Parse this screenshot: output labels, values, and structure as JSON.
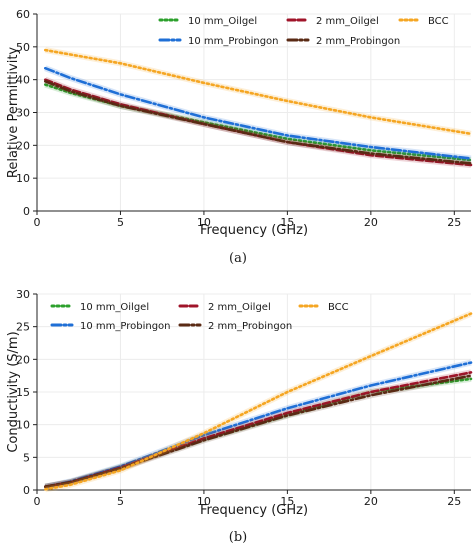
{
  "chart_data": [
    {
      "type": "line",
      "panel_label": "(a)",
      "xlabel": "Frequency (GHz)",
      "ylabel": "Relative Permittivity",
      "xlim": [
        0,
        26
      ],
      "ylim": [
        0,
        60
      ],
      "xticks": [
        0,
        5,
        10,
        15,
        20,
        25
      ],
      "yticks": [
        0,
        10,
        20,
        30,
        40,
        50,
        60
      ],
      "grid": true,
      "legend": "top, 3 columns",
      "series": [
        {
          "name": "10 mm_Oilgel",
          "color": "#2ca02c",
          "style": "dotted",
          "x": [
            0.5,
            2,
            5,
            10,
            15,
            20,
            26
          ],
          "y": [
            38.5,
            36.0,
            32.0,
            27.0,
            22.0,
            18.5,
            15.5
          ]
        },
        {
          "name": "10 mm_Probingon",
          "color": "#1f6fd6",
          "style": "dashdot",
          "x": [
            0.5,
            2,
            5,
            10,
            15,
            20,
            26
          ],
          "y": [
            43.5,
            40.5,
            35.5,
            28.5,
            23.0,
            19.5,
            16.0
          ]
        },
        {
          "name": "2 mm_Oilgel",
          "color": "#a0142a",
          "style": "dashed",
          "x": [
            0.5,
            2,
            5,
            10,
            15,
            20,
            26
          ],
          "y": [
            40.0,
            37.0,
            32.5,
            26.5,
            21.0,
            17.0,
            14.0
          ]
        },
        {
          "name": "2 mm_Probingon",
          "color": "#5a2a14",
          "style": "dashdot",
          "x": [
            0.5,
            2,
            5,
            10,
            15,
            20,
            26
          ],
          "y": [
            39.5,
            36.5,
            32.0,
            26.5,
            21.0,
            17.5,
            14.5
          ]
        },
        {
          "name": "BCC",
          "color": "#f5a623",
          "style": "dotted",
          "x": [
            0.5,
            5,
            10,
            15,
            20,
            26
          ],
          "y": [
            49.0,
            45.0,
            39.0,
            33.5,
            28.5,
            23.5
          ]
        }
      ]
    },
    {
      "type": "line",
      "panel_label": "(b)",
      "xlabel": "Frequency (GHz)",
      "ylabel": "Conductivity (S/m)",
      "xlim": [
        0,
        26
      ],
      "ylim": [
        0,
        30
      ],
      "xticks": [
        0,
        5,
        10,
        15,
        20,
        25
      ],
      "yticks": [
        0,
        5,
        10,
        15,
        20,
        25,
        30
      ],
      "grid": true,
      "legend": "top, 3 columns",
      "series": [
        {
          "name": "10 mm_Oilgel",
          "color": "#2ca02c",
          "style": "dotted",
          "x": [
            0.5,
            2,
            5,
            10,
            15,
            20,
            26
          ],
          "y": [
            0.5,
            1.2,
            3.5,
            7.8,
            11.5,
            15.0,
            17.0
          ]
        },
        {
          "name": "10 mm_Probingon",
          "color": "#1f6fd6",
          "style": "dashdot",
          "x": [
            0.5,
            2,
            5,
            10,
            15,
            20,
            26
          ],
          "y": [
            0.5,
            1.3,
            3.6,
            8.4,
            12.5,
            16.0,
            19.5
          ]
        },
        {
          "name": "2 mm_Oilgel",
          "color": "#a0142a",
          "style": "dashed",
          "x": [
            0.5,
            2,
            5,
            10,
            15,
            20,
            26
          ],
          "y": [
            0.5,
            1.2,
            3.4,
            7.9,
            11.8,
            15.0,
            18.0
          ]
        },
        {
          "name": "2 mm_Probingon",
          "color": "#5a2a14",
          "style": "dashdot",
          "x": [
            0.5,
            2,
            5,
            10,
            15,
            20,
            26
          ],
          "y": [
            0.5,
            1.2,
            3.3,
            7.6,
            11.4,
            14.5,
            17.5
          ]
        },
        {
          "name": "BCC",
          "color": "#f5a623",
          "style": "dotted",
          "x": [
            0.5,
            2,
            5,
            10,
            15,
            20,
            26
          ],
          "y": [
            0.1,
            0.8,
            3.0,
            8.7,
            15.0,
            20.5,
            27.0
          ]
        }
      ]
    }
  ]
}
